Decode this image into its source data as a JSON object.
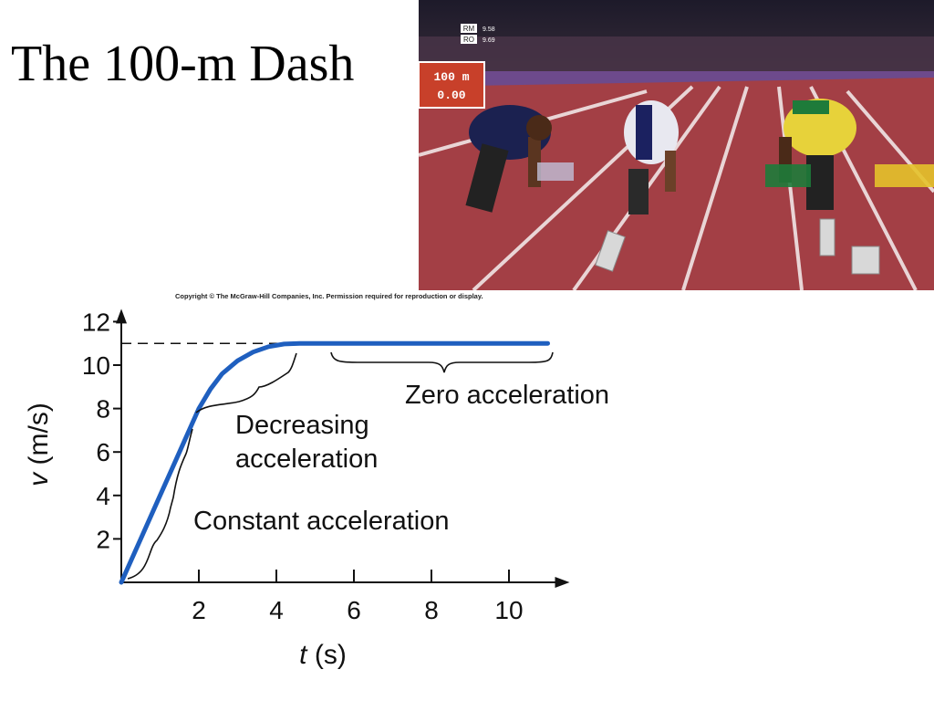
{
  "slide": {
    "title": "The 100-m Dash",
    "copyright": "Copyright © The McGraw-Hill Companies, Inc. Permission required for reproduction or display."
  },
  "photo": {
    "scoreboard": [
      {
        "code": "RM",
        "time": "9.58"
      },
      {
        "code": "RO",
        "time": "9.69"
      }
    ],
    "race_display": {
      "distance": "100 m",
      "time": "0.00"
    }
  },
  "colors": {
    "curve": "#1f5fbf",
    "track": "#a33f45",
    "text": "#111111"
  },
  "chart_data": {
    "type": "line",
    "xlabel_var": "t",
    "xlabel_unit": "(s)",
    "ylabel_var": "v",
    "ylabel_unit": "(m/s)",
    "xlim": [
      0,
      11
    ],
    "ylim": [
      0,
      12
    ],
    "xticks": [
      2,
      4,
      6,
      8,
      10
    ],
    "yticks": [
      2,
      4,
      6,
      8,
      10,
      12
    ],
    "series": [
      {
        "x": [
          0,
          0.5,
          1.0,
          1.5,
          2.0,
          2.3,
          2.6,
          3.0,
          3.4,
          3.8,
          4.2,
          4.6,
          5.0,
          6.0,
          7.0,
          8.0,
          9.0,
          10.0,
          11.0
        ],
        "y": [
          0,
          2.0,
          4.0,
          6.0,
          8.0,
          8.9,
          9.6,
          10.2,
          10.6,
          10.85,
          10.97,
          11.0,
          11.0,
          11.0,
          11.0,
          11.0,
          11.0,
          11.0,
          11.0
        ]
      }
    ],
    "reference_line": {
      "y": 11,
      "style": "dashed"
    },
    "annotations": [
      {
        "text": "Constant acceleration",
        "from_t": 0,
        "to_t": 2
      },
      {
        "text": "Decreasing acceleration",
        "lines": [
          "Decreasing",
          "acceleration"
        ],
        "from_t": 2,
        "to_t": 4.5
      },
      {
        "text": "Zero acceleration",
        "from_t": 5.5,
        "to_t": 11
      }
    ]
  }
}
